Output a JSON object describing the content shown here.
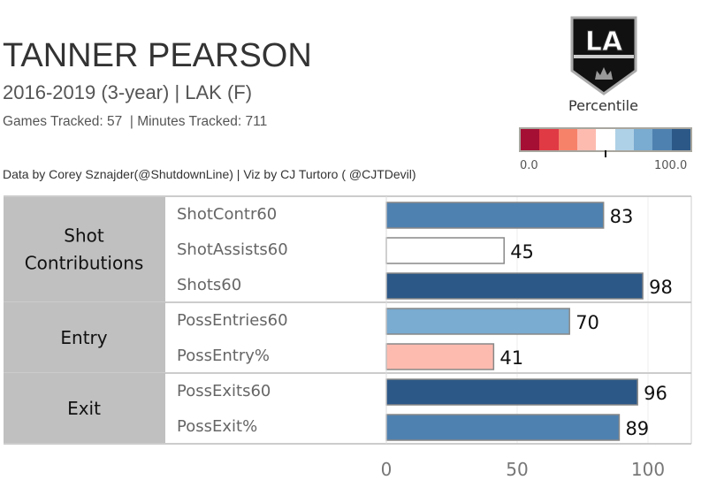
{
  "header": {
    "player": "TANNER PEARSON",
    "subtitle": "2016-2019 (3-year) | LAK (F)",
    "tracked": "Games Tracked: 57  | Minutes Tracked: 711",
    "credit": "Data by Corey Sznajder(@ShutdownLine) | Viz by CJ Turtoro ( @CJTDevil)"
  },
  "logo": {
    "text": "LA"
  },
  "legend": {
    "title": "Percentile",
    "min_label": "0.0",
    "max_label": "100.0",
    "marker_value": 50,
    "colors": [
      "#a50f34",
      "#e03a45",
      "#f7826a",
      "#fdbbb0",
      "#ffffff",
      "#afd1e7",
      "#7aabd0",
      "#4f81b0",
      "#2c5887"
    ]
  },
  "chart_data": {
    "type": "bar",
    "orientation": "horizontal",
    "xlim": [
      0,
      120
    ],
    "xticks": [
      "0",
      "50",
      "100"
    ],
    "tick_values": [
      0,
      50,
      100
    ],
    "groups": [
      {
        "name": "Shot Contributions",
        "metrics": [
          {
            "label": "ShotContr60",
            "value": 83,
            "color": "#4f81b0"
          },
          {
            "label": "ShotAssists60",
            "value": 45,
            "color": "#ffffff"
          },
          {
            "label": "Shots60",
            "value": 98,
            "color": "#2c5887"
          }
        ]
      },
      {
        "name": "Entry",
        "metrics": [
          {
            "label": "PossEntries60",
            "value": 70,
            "color": "#7aabd0"
          },
          {
            "label": "PossEntry%",
            "value": 41,
            "color": "#fdbbb0"
          }
        ]
      },
      {
        "name": "Exit",
        "metrics": [
          {
            "label": "PossExits60",
            "value": 96,
            "color": "#2c5887"
          },
          {
            "label": "PossExit%",
            "value": 89,
            "color": "#4f81b0"
          }
        ]
      }
    ]
  }
}
